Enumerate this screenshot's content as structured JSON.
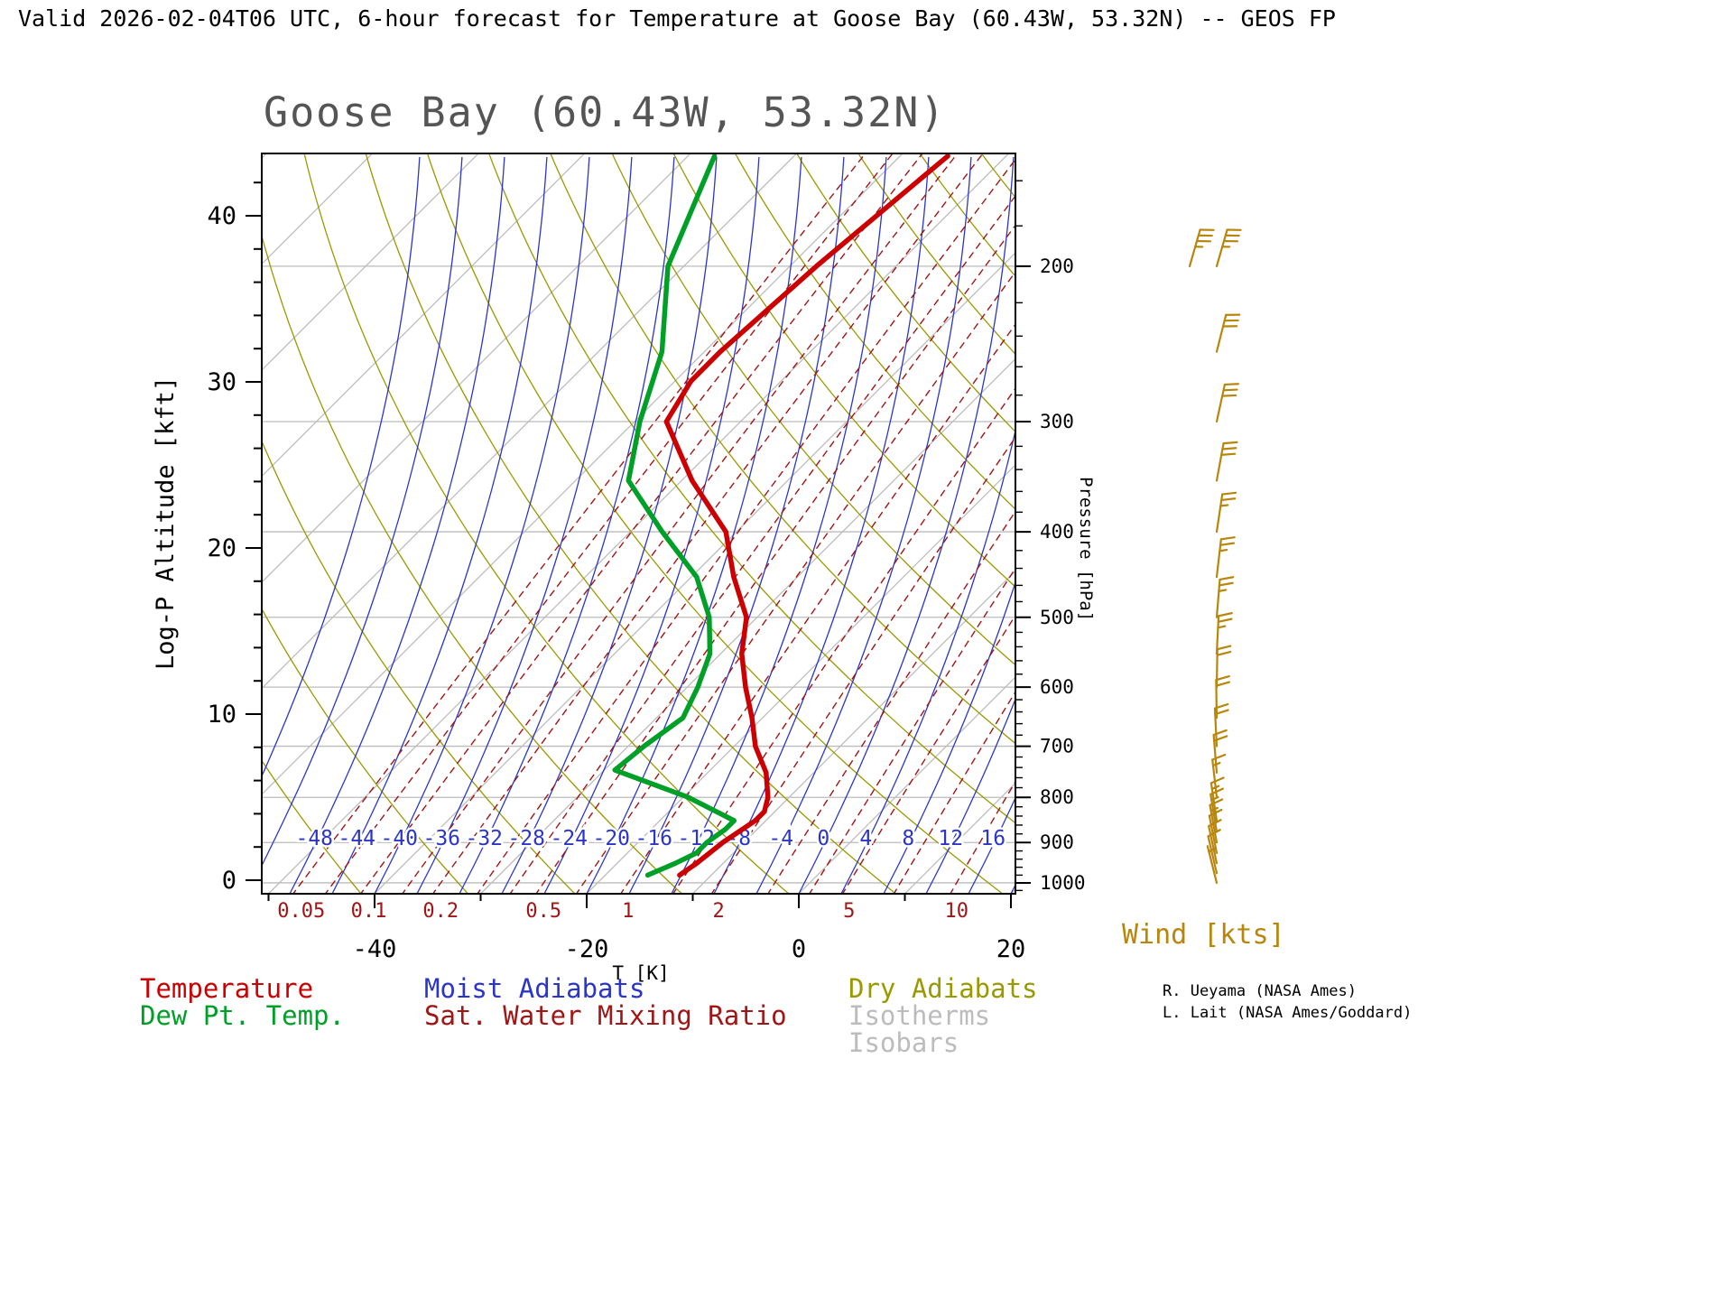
{
  "header": {
    "title": "Valid 2026-02-04T06 UTC, 6-hour forecast for Temperature at Goose Bay (60.43W, 53.32N) -- GEOS FP"
  },
  "chart_data": {
    "type": "line",
    "subtype": "skew-t-log-p-sounding",
    "title": "Goose Bay (60.43W, 53.32N)",
    "xlabel": "T [K]",
    "x_ticks": [
      -40,
      -20,
      0,
      20
    ],
    "xlim": [
      -50,
      20
    ],
    "left_axis": {
      "label": "Log-P Altitude [kft]",
      "ticks": [
        0,
        10,
        20,
        30,
        40
      ]
    },
    "right_axis": {
      "label": "Pressure [hPa]",
      "ticks": [
        200,
        300,
        400,
        500,
        600,
        700,
        800,
        900,
        1000
      ]
    },
    "pressure_range_hpa": [
      150,
      1050
    ],
    "isotherm_step_c": 10,
    "moist_adiabat_labels_c": [
      -48,
      -44,
      -40,
      -36,
      -32,
      -28,
      -24,
      -20,
      -16,
      -12,
      -8,
      -4,
      0,
      4,
      8,
      12,
      16
    ],
    "mixing_ratio_labels_gkg": [
      0.05,
      0.1,
      0.2,
      0.5,
      1,
      2,
      5,
      10
    ],
    "mixing_ratio_lines_gkg": [
      0.05,
      0.07,
      0.1,
      0.15,
      0.2,
      0.3,
      0.4,
      0.5,
      0.7,
      1,
      1.5,
      2,
      3,
      4,
      5,
      7,
      10,
      15,
      20
    ],
    "dry_adiabat_theta_k": {
      "min": 230,
      "max": 420,
      "step": 10
    },
    "series": [
      {
        "name": "Temperature",
        "color_key": "temperature",
        "points_p_t": [
          [
            980,
            -13
          ],
          [
            950,
            -12.5
          ],
          [
            900,
            -12
          ],
          [
            850,
            -11
          ],
          [
            830,
            -11
          ],
          [
            800,
            -12
          ],
          [
            750,
            -14.5
          ],
          [
            700,
            -18
          ],
          [
            650,
            -21
          ],
          [
            600,
            -24.5
          ],
          [
            550,
            -28
          ],
          [
            500,
            -31
          ],
          [
            450,
            -36
          ],
          [
            400,
            -41
          ],
          [
            350,
            -49
          ],
          [
            300,
            -57
          ],
          [
            270,
            -58.5
          ],
          [
            250,
            -58.5
          ],
          [
            200,
            -57.5
          ],
          [
            150,
            -55.5
          ]
        ]
      },
      {
        "name": "Dew Pt. Temp.",
        "color_key": "dewpoint",
        "points_p_t": [
          [
            980,
            -16
          ],
          [
            950,
            -14.5
          ],
          [
            925,
            -13.5
          ],
          [
            900,
            -13.5
          ],
          [
            870,
            -13
          ],
          [
            850,
            -13
          ],
          [
            800,
            -19.5
          ],
          [
            745,
            -29
          ],
          [
            700,
            -28.5
          ],
          [
            650,
            -27.5
          ],
          [
            600,
            -29
          ],
          [
            550,
            -31
          ],
          [
            500,
            -34.5
          ],
          [
            450,
            -39.5
          ],
          [
            400,
            -47
          ],
          [
            350,
            -55
          ],
          [
            300,
            -59.5
          ],
          [
            250,
            -64
          ],
          [
            200,
            -71.5
          ],
          [
            150,
            -77.5
          ]
        ]
      }
    ],
    "wind_units_label": "Wind [kts]",
    "wind_barbs_kts": [
      {
        "p": 1000,
        "spd": 5
      },
      {
        "p": 975,
        "spd": 10
      },
      {
        "p": 950,
        "spd": 10
      },
      {
        "p": 925,
        "spd": 10
      },
      {
        "p": 900,
        "spd": 15
      },
      {
        "p": 875,
        "spd": 15
      },
      {
        "p": 850,
        "spd": 15
      },
      {
        "p": 800,
        "spd": 15
      },
      {
        "p": 750,
        "spd": 20
      },
      {
        "p": 700,
        "spd": 20
      },
      {
        "p": 650,
        "spd": 20
      },
      {
        "p": 600,
        "spd": 20
      },
      {
        "p": 550,
        "spd": 25
      },
      {
        "p": 500,
        "spd": 25
      },
      {
        "p": 450,
        "spd": 25
      },
      {
        "p": 400,
        "spd": 25
      },
      {
        "p": 350,
        "spd": 30
      },
      {
        "p": 300,
        "spd": 30
      },
      {
        "p": 250,
        "spd": 30
      },
      {
        "p": 200,
        "spd": 35
      },
      {
        "p": 200,
        "spd": 35,
        "dx": -30
      }
    ]
  },
  "legend": {
    "items": [
      {
        "label": "Temperature",
        "color_key": "temperature"
      },
      {
        "label": "Dew Pt. Temp.",
        "color_key": "dewpoint"
      },
      {
        "label": "Moist Adiabats",
        "color_key": "moist_adiabat"
      },
      {
        "label": "Sat. Water Mixing Ratio",
        "color_key": "mixing_ratio"
      },
      {
        "label": "Dry Adiabats",
        "color_key": "dry_adiabat"
      },
      {
        "label": "Isotherms",
        "color_key": "isopleth_gray"
      },
      {
        "label": "Isobars",
        "color_key": "isopleth_gray"
      }
    ]
  },
  "credits": [
    "R. Ueyama (NASA Ames)",
    "L. Lait (NASA Ames/Goddard)"
  ],
  "colors": {
    "temperature": "#cc0000",
    "dewpoint": "#00a028",
    "moist_adiabat": "#2b35c7",
    "mixing_ratio": "#a01515",
    "dry_adiabat": "#999900",
    "isopleth_gray": "#bcbcbc",
    "frame": "#000000",
    "wind": "#b8860b",
    "title": "#555555"
  }
}
